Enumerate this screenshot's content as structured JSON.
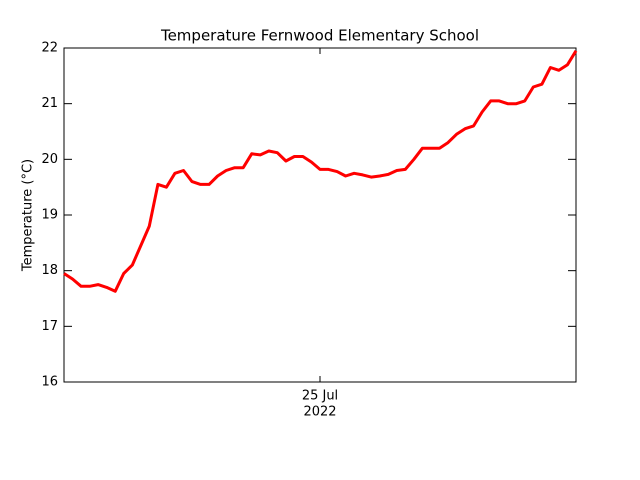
{
  "chart_data": {
    "type": "line",
    "title": "Temperature Fernwood Elementary School",
    "ylabel": "Temperature (°C)",
    "xlabel": "2022",
    "categories": [
      null,
      null,
      null,
      null,
      null,
      null,
      null,
      null,
      null,
      null,
      null,
      null,
      null,
      null,
      null,
      null,
      null,
      null,
      null,
      null,
      null,
      null,
      null,
      null,
      null,
      null,
      null,
      null,
      null,
      null,
      "25 Jul",
      null,
      null,
      null,
      null,
      null,
      null,
      null,
      null,
      null,
      null,
      null,
      null,
      null,
      null,
      null,
      null,
      null,
      null,
      null,
      null,
      null,
      null,
      null,
      null,
      null,
      null,
      null,
      null,
      null,
      null
    ],
    "series": [
      {
        "name": "Temperature",
        "color": "#ff0000",
        "values": [
          17.95,
          17.85,
          17.72,
          17.72,
          17.75,
          17.7,
          17.63,
          17.95,
          18.1,
          18.45,
          18.8,
          19.55,
          19.5,
          19.75,
          19.8,
          19.6,
          19.55,
          19.55,
          19.7,
          19.8,
          19.85,
          19.85,
          20.1,
          20.08,
          20.15,
          20.12,
          19.97,
          20.05,
          20.05,
          19.95,
          19.82,
          19.82,
          19.78,
          19.7,
          19.75,
          19.72,
          19.68,
          19.7,
          19.73,
          19.8,
          19.82,
          20.0,
          20.2,
          20.2,
          20.2,
          20.3,
          20.45,
          20.55,
          20.6,
          20.85,
          21.05,
          21.05,
          21.0,
          21.0,
          21.05,
          21.3,
          21.35,
          21.65,
          21.6,
          21.7,
          21.95
        ]
      }
    ],
    "ylim": [
      16,
      22
    ],
    "yticks": [
      16,
      17,
      18,
      19,
      20,
      21,
      22
    ]
  }
}
